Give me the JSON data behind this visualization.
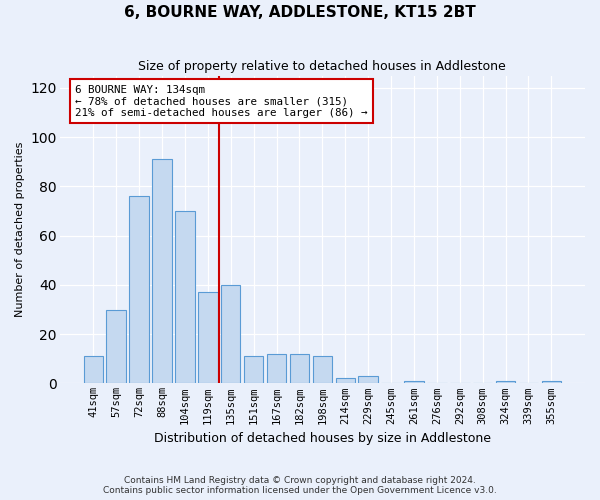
{
  "title": "6, BOURNE WAY, ADDLESTONE, KT15 2BT",
  "subtitle": "Size of property relative to detached houses in Addlestone",
  "xlabel": "Distribution of detached houses by size in Addlestone",
  "ylabel": "Number of detached properties",
  "categories": [
    "41sqm",
    "57sqm",
    "72sqm",
    "88sqm",
    "104sqm",
    "119sqm",
    "135sqm",
    "151sqm",
    "167sqm",
    "182sqm",
    "198sqm",
    "214sqm",
    "229sqm",
    "245sqm",
    "261sqm",
    "276sqm",
    "292sqm",
    "308sqm",
    "324sqm",
    "339sqm",
    "355sqm"
  ],
  "values": [
    11,
    30,
    76,
    91,
    70,
    37,
    40,
    11,
    12,
    12,
    11,
    2,
    3,
    0,
    1,
    0,
    0,
    0,
    1,
    0,
    1
  ],
  "bar_color": "#c5d9f0",
  "bar_edge_color": "#5a9bd5",
  "vline_x_index": 6,
  "vline_color": "#cc0000",
  "annotation_text": "6 BOURNE WAY: 134sqm\n← 78% of detached houses are smaller (315)\n21% of semi-detached houses are larger (86) →",
  "annotation_box_color": "#ffffff",
  "annotation_box_edge_color": "#cc0000",
  "ylim": [
    0,
    125
  ],
  "yticks": [
    0,
    20,
    40,
    60,
    80,
    100,
    120
  ],
  "footer_line1": "Contains HM Land Registry data © Crown copyright and database right 2024.",
  "footer_line2": "Contains public sector information licensed under the Open Government Licence v3.0.",
  "bg_color": "#eaf0fb",
  "plot_bg_color": "#eaf0fb"
}
